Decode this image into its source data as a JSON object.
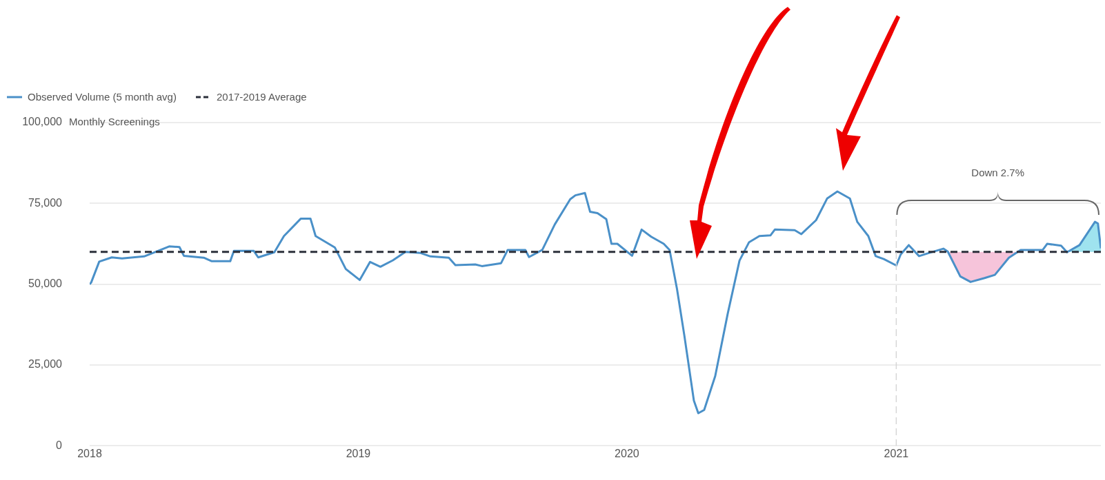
{
  "chart_data": {
    "type": "line",
    "ylabel": "Monthly Screenings",
    "legend": "top left",
    "grid": "y",
    "marker": "none",
    "line_style": "solid",
    "xlim": [
      "2018-01-01",
      "2021-10-06"
    ],
    "xticks": [
      "2018",
      "2019",
      "2020",
      "2021"
    ],
    "ylim": [
      0,
      100000
    ],
    "yticks": [
      0,
      {
        "value": 25000,
        "label": "25,000"
      },
      {
        "value": 50000,
        "label": "50,000"
      },
      {
        "value": 75000,
        "label": "75,000"
      },
      {
        "value": 100000,
        "label": "100,000"
      }
    ],
    "ref_lines": [
      {
        "axis": "y",
        "value": 60000,
        "label": "2017-2019 Average",
        "color": "#2b2f3a",
        "line_style": "dashed"
      },
      {
        "axis": "x",
        "value": "2021-01-01",
        "color": "#d6d6d6",
        "line_style": "dashed"
      }
    ],
    "annotations": [
      "Down 2.7%"
    ],
    "series": [
      {
        "name": "Observed Volume (5 month avg)",
        "color": "#4a90c8",
        "x": [
          "2018-01-01",
          "2018-01-03",
          "2018-01-14",
          "2018-01-31",
          "2018-02-14",
          "2018-03-16",
          "2018-04-19",
          "2018-05-03",
          "2018-05-09",
          "2018-06-05",
          "2018-06-16",
          "2018-07-11",
          "2018-07-16",
          "2018-08-12",
          "2018-08-18",
          "2018-09-09",
          "2018-09-22",
          "2018-10-15",
          "2018-10-28",
          "2018-11-04",
          "2018-11-30",
          "2018-12-15",
          "2019-01-03",
          "2019-01-17",
          "2019-01-31",
          "2019-02-17",
          "2019-03-06",
          "2019-03-26",
          "2019-04-09",
          "2019-05-04",
          "2019-05-13",
          "2019-06-09",
          "2019-06-18",
          "2019-07-14",
          "2019-07-23",
          "2019-08-16",
          "2019-08-21",
          "2019-09-08",
          "2019-09-25",
          "2019-10-16",
          "2019-10-23",
          "2019-11-05",
          "2019-11-12",
          "2019-11-22",
          "2019-12-04",
          "2019-12-11",
          "2019-12-19",
          "2020-01-08",
          "2020-01-21",
          "2020-02-03",
          "2020-02-20",
          "2020-02-28",
          "2020-03-09",
          "2020-03-19",
          "2020-04-01",
          "2020-04-07",
          "2020-04-15",
          "2020-04-30",
          "2020-05-17",
          "2020-06-02",
          "2020-06-15",
          "2020-06-29",
          "2020-07-14",
          "2020-07-20",
          "2020-08-16",
          "2020-08-25",
          "2020-09-14",
          "2020-09-29",
          "2020-10-13",
          "2020-10-30",
          "2020-11-09",
          "2020-11-24",
          "2020-12-04",
          "2020-12-15",
          "2021-01-01",
          "2021-01-07",
          "2021-01-18",
          "2021-02-01",
          "2021-02-15",
          "2021-03-06",
          "2021-03-12",
          "2021-03-29",
          "2021-04-12",
          "2021-05-01",
          "2021-05-15",
          "2021-06-03",
          "2021-06-19",
          "2021-07-19",
          "2021-07-25",
          "2021-08-13",
          "2021-08-21",
          "2021-09-07",
          "2021-09-28",
          "2021-10-02",
          "2021-10-06"
        ],
        "values": [
          50000,
          50500,
          57000,
          58300,
          58000,
          58600,
          61700,
          61500,
          58800,
          58200,
          57100,
          57100,
          60300,
          60300,
          58300,
          59900,
          64900,
          70300,
          70300,
          64900,
          61400,
          54700,
          51300,
          56900,
          55400,
          57400,
          60000,
          59700,
          58600,
          58200,
          55900,
          56100,
          55600,
          56500,
          60600,
          60600,
          58400,
          60600,
          68500,
          76300,
          77500,
          78200,
          72400,
          72000,
          70100,
          62500,
          62500,
          58800,
          66900,
          64700,
          62500,
          60600,
          48600,
          34200,
          14000,
          10100,
          11100,
          21600,
          40900,
          57300,
          63000,
          64900,
          65100,
          66900,
          66700,
          65500,
          69800,
          76500,
          78700,
          76500,
          69300,
          64900,
          58700,
          57800,
          55800,
          59200,
          62100,
          58700,
          59700,
          61000,
          60100,
          52400,
          50700,
          51900,
          52900,
          58200,
          60600,
          60600,
          62500,
          61900,
          59900,
          62100,
          69300,
          68800,
          61100
        ]
      },
      {
        "type": "area",
        "color": "#f6c4da",
        "x": [
          "2021-03-12",
          "2021-03-29",
          "2021-04-12",
          "2021-05-01",
          "2021-05-15",
          "2021-06-03",
          "2021-06-19"
        ],
        "values": [
          60100,
          52400,
          50700,
          51900,
          52900,
          58200,
          60600
        ]
      },
      {
        "type": "area",
        "color": "#9fe3ef",
        "x": [
          "2021-08-21",
          "2021-09-07",
          "2021-09-28",
          "2021-10-02",
          "2021-10-06"
        ],
        "values": [
          59900,
          62100,
          69300,
          68800,
          61100
        ]
      }
    ]
  }
}
